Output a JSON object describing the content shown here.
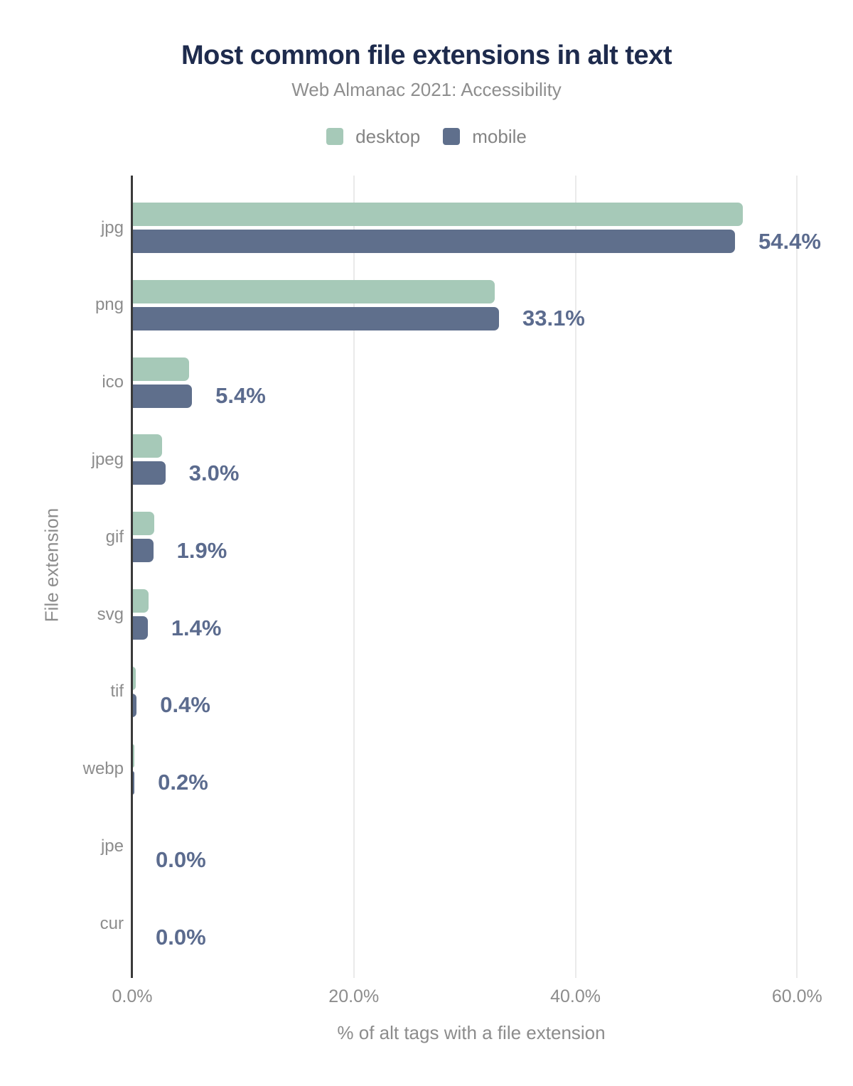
{
  "header": {
    "title": "Most common file extensions in alt text",
    "subtitle": "Web Almanac 2021: Accessibility"
  },
  "legend": {
    "items": [
      {
        "label": "desktop",
        "color": "#a6c9b8"
      },
      {
        "label": "mobile",
        "color": "#5f6f8c"
      }
    ]
  },
  "chart_data": {
    "type": "bar",
    "orientation": "horizontal",
    "title": "Most common file extensions in alt text",
    "subtitle": "Web Almanac 2021: Accessibility",
    "categories": [
      "jpg",
      "png",
      "ico",
      "jpeg",
      "gif",
      "svg",
      "tif",
      "webp",
      "jpe",
      "cur"
    ],
    "series": [
      {
        "name": "desktop",
        "color": "#a6c9b8",
        "values": [
          55.1,
          32.7,
          5.1,
          2.7,
          2.0,
          1.5,
          0.3,
          0.2,
          0.0,
          0.0
        ]
      },
      {
        "name": "mobile",
        "color": "#5f6f8c",
        "values": [
          54.4,
          33.1,
          5.4,
          3.0,
          1.9,
          1.4,
          0.4,
          0.2,
          0.0,
          0.0
        ]
      }
    ],
    "value_labels": [
      "54.4%",
      "33.1%",
      "5.4%",
      "3.0%",
      "1.9%",
      "1.4%",
      "0.4%",
      "0.2%",
      "0.0%",
      "0.0%"
    ],
    "value_labels_series": "mobile",
    "xlabel": "% of alt tags with a file extension",
    "ylabel": "File extension",
    "x_ticks": [
      {
        "label": "0.0%",
        "value": 0
      },
      {
        "label": "20.0%",
        "value": 20
      },
      {
        "label": "40.0%",
        "value": 40
      },
      {
        "label": "60.0%",
        "value": 60
      }
    ],
    "xlim": [
      0,
      61.2
    ],
    "grid": "vertical",
    "legend_position": "top"
  },
  "colors": {
    "background": "#ffffff",
    "title": "#1e2b4d",
    "subtitle": "#8e8e8e",
    "desktop_bar": "#a6c9b8",
    "mobile_bar": "#5f6f8c",
    "value_label": "#5b6b8e",
    "muted_text": "#8c8c8c",
    "axis_line": "#3a3a3a",
    "gridline": "#eaeaea"
  }
}
